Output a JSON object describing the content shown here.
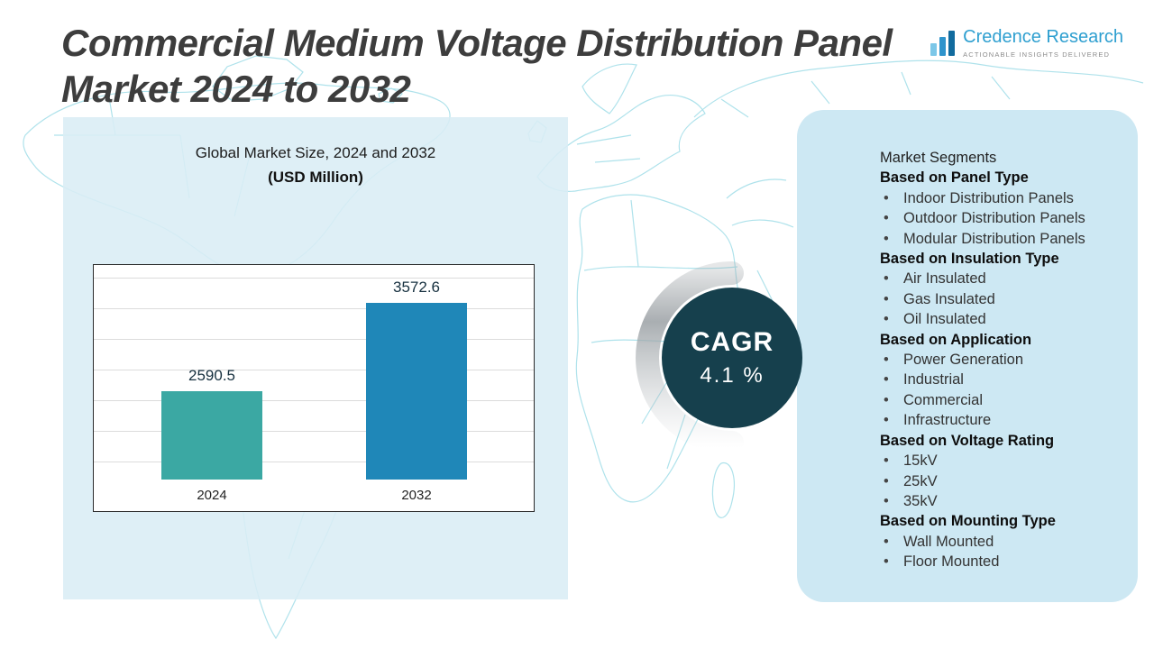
{
  "header": {
    "title_line1": "Commercial Medium Voltage Distribution Panel",
    "title_line2": "Market 2024 to 2032",
    "logo": {
      "name": "Credence Research",
      "tagline": "Actionable Insights Delivered"
    }
  },
  "chart_panel": {
    "title": "Global Market Size, 2024 and 2032",
    "subtitle": "(USD Million)"
  },
  "chart_data": {
    "type": "bar",
    "title": "Global Market Size, 2024 and 2032",
    "unit": "USD Million",
    "categories": [
      "2024",
      "2032"
    ],
    "values": [
      2590.5,
      3572.6
    ],
    "value_labels": [
      "2590.5",
      "3572.6"
    ],
    "bar_colors": [
      "#3BA8A3",
      "#1F87B8"
    ],
    "ylim": [
      1600,
      4000
    ],
    "grid": true,
    "legend_position": "none"
  },
  "cagr": {
    "label": "CAGR",
    "value": "4.1 %"
  },
  "segments": {
    "title": "Market Segments",
    "groups": [
      {
        "heading": "Based on Panel Type",
        "items": [
          "Indoor Distribution Panels",
          "Outdoor Distribution Panels",
          "Modular Distribution Panels"
        ]
      },
      {
        "heading": "Based on Insulation Type",
        "items": [
          "Air Insulated",
          "Gas Insulated",
          "Oil Insulated"
        ]
      },
      {
        "heading": "Based on Application",
        "items": [
          "Power Generation",
          "Industrial",
          "Commercial",
          "Infrastructure"
        ]
      },
      {
        "heading": "Based on Voltage Rating",
        "items": [
          "15kV",
          "25kV",
          "35kV"
        ]
      },
      {
        "heading": "Based on Mounting Type",
        "items": [
          "Wall Mounted",
          "Floor Mounted"
        ]
      }
    ]
  },
  "colors": {
    "left_panel_bg": "#D9EDF5",
    "right_panel_bg": "#CDE8F3",
    "cagr_circle": "#16404D",
    "map_line": "#A6DFE9",
    "title_color": "#3D3D3D",
    "logo_blue": "#2E9FD0"
  }
}
